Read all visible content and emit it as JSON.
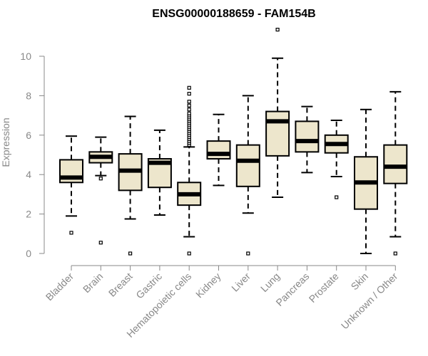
{
  "chart_data": {
    "type": "boxplot",
    "title": "ENSG00000188659 - FAM154B",
    "xlabel": "",
    "ylabel": "Expression",
    "ylim": [
      0,
      11.5
    ],
    "yticks": [
      0,
      2,
      4,
      6,
      8,
      10
    ],
    "box_fill": "#ede6cc",
    "categories": [
      "Bladder",
      "Brain",
      "Breast",
      "Gastric",
      "Hematopoietic cells",
      "Kidney",
      "Liver",
      "Lung",
      "Pancreas",
      "Prostate",
      "Skin",
      "Unknown / Other"
    ],
    "boxes": [
      {
        "label": "Bladder",
        "lower_whisker": 1.9,
        "q1": 3.6,
        "median": 3.85,
        "q3": 4.75,
        "upper_whisker": 5.95,
        "outliers": [
          1.05
        ]
      },
      {
        "label": "Brain",
        "lower_whisker": 3.95,
        "q1": 4.6,
        "median": 4.9,
        "q3": 5.15,
        "upper_whisker": 5.9,
        "outliers": [
          3.8,
          0.55
        ]
      },
      {
        "label": "Breast",
        "lower_whisker": 1.75,
        "q1": 3.2,
        "median": 4.2,
        "q3": 5.05,
        "upper_whisker": 6.95,
        "outliers": [
          0.0
        ]
      },
      {
        "label": "Gastric",
        "lower_whisker": 1.95,
        "q1": 3.35,
        "median": 4.6,
        "q3": 4.8,
        "upper_whisker": 6.25,
        "outliers": []
      },
      {
        "label": "Hematopoietic cells",
        "lower_whisker": 0.85,
        "q1": 2.45,
        "median": 3.0,
        "q3": 3.6,
        "upper_whisker": 5.4,
        "outliers": [
          0.0,
          5.5,
          5.6,
          5.7,
          5.8,
          5.9,
          6.0,
          6.1,
          6.2,
          6.3,
          6.4,
          6.5,
          6.6,
          6.7,
          6.8,
          6.9,
          7.0,
          7.1,
          7.3,
          7.5,
          7.7,
          8.1,
          8.4
        ]
      },
      {
        "label": "Kidney",
        "lower_whisker": 3.45,
        "q1": 4.8,
        "median": 5.05,
        "q3": 5.7,
        "upper_whisker": 7.05,
        "outliers": []
      },
      {
        "label": "Liver",
        "lower_whisker": 2.05,
        "q1": 3.4,
        "median": 4.7,
        "q3": 5.5,
        "upper_whisker": 8.0,
        "outliers": [
          0.0
        ]
      },
      {
        "label": "Lung",
        "lower_whisker": 2.85,
        "q1": 4.95,
        "median": 6.7,
        "q3": 7.2,
        "upper_whisker": 9.9,
        "outliers": [
          11.35
        ]
      },
      {
        "label": "Pancreas",
        "lower_whisker": 4.1,
        "q1": 5.15,
        "median": 5.7,
        "q3": 6.7,
        "upper_whisker": 7.45,
        "outliers": []
      },
      {
        "label": "Prostate",
        "lower_whisker": 3.9,
        "q1": 5.1,
        "median": 5.55,
        "q3": 6.0,
        "upper_whisker": 6.75,
        "outliers": [
          2.85
        ]
      },
      {
        "label": "Skin",
        "lower_whisker": 0.0,
        "q1": 2.25,
        "median": 3.6,
        "q3": 4.9,
        "upper_whisker": 7.3,
        "outliers": []
      },
      {
        "label": "Unknown / Other",
        "lower_whisker": 0.85,
        "q1": 3.55,
        "median": 4.4,
        "q3": 5.5,
        "upper_whisker": 8.2,
        "outliers": [
          0.0
        ]
      }
    ]
  }
}
